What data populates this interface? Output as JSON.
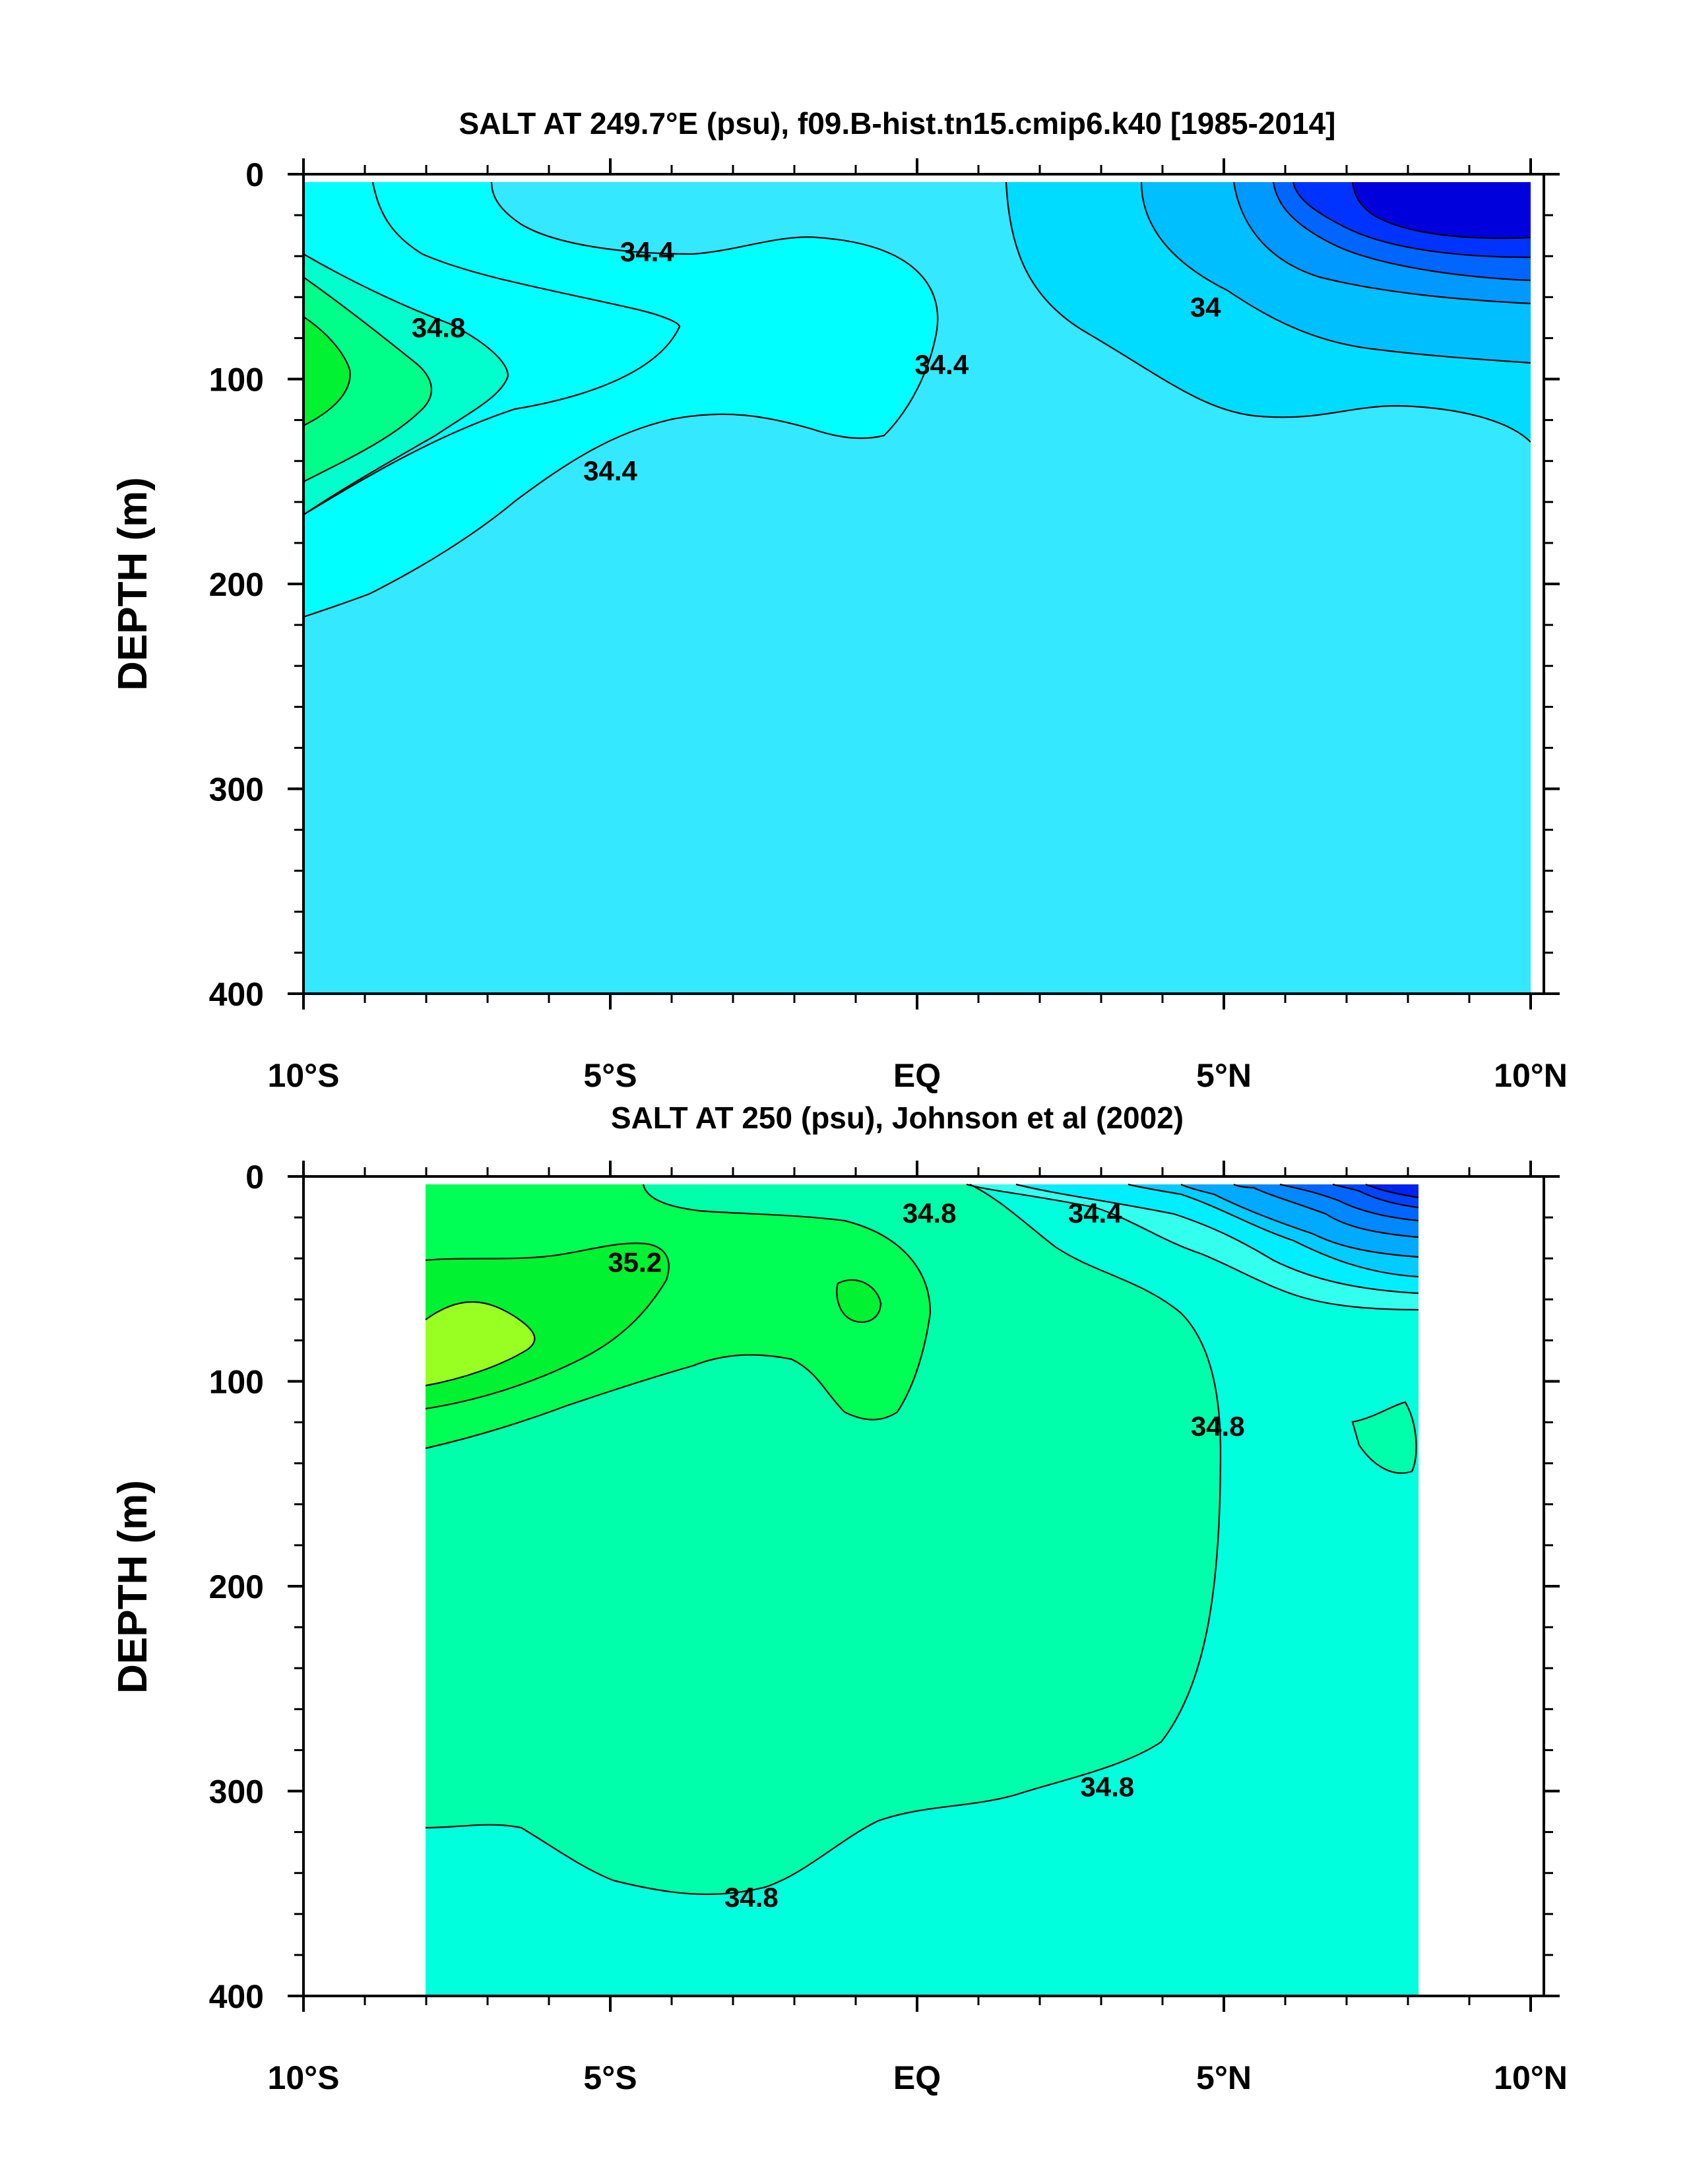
{
  "chart_data": [
    {
      "type": "contour",
      "title": "SALT AT 249.7°E (psu), f09.B-hist.tn15.cmip6.k40 [1985-2014]",
      "ylabel": "DEPTH (m)",
      "xlim": [
        -10,
        10
      ],
      "ylim": [
        400,
        0
      ],
      "x_ticks": [
        {
          "value": -10,
          "label": "10°S"
        },
        {
          "value": -5,
          "label": "5°S"
        },
        {
          "value": 0,
          "label": "EQ"
        },
        {
          "value": 5,
          "label": "5°N"
        },
        {
          "value": 10,
          "label": "10°N"
        }
      ],
      "y_ticks": [
        {
          "value": 0,
          "label": "0"
        },
        {
          "value": 100,
          "label": "100"
        },
        {
          "value": 200,
          "label": "200"
        },
        {
          "value": 300,
          "label": "300"
        },
        {
          "value": 400,
          "label": "400"
        }
      ],
      "data_extent_x": [
        -10,
        10
      ],
      "data_extent_y": [
        5,
        400
      ],
      "contour_interval": 0.2,
      "contour_labels": [
        {
          "x": -4.4,
          "y": 38,
          "text": "34.4"
        },
        {
          "x": -7.8,
          "y": 75,
          "text": "34.8"
        },
        {
          "x": 0.4,
          "y": 93,
          "text": "34.4"
        },
        {
          "x": -5.0,
          "y": 145,
          "text": "34.4"
        },
        {
          "x": 4.7,
          "y": 65,
          "text": "34"
        }
      ],
      "regions": [
        {
          "value": 34.5,
          "color": "#33e8ff",
          "desc": "background"
        },
        {
          "value": 34.3,
          "color": "#00ffff"
        },
        {
          "value": 34.7,
          "color": "#00ffcc"
        },
        {
          "value": 34.9,
          "color": "#00ff88"
        },
        {
          "value": 35.1,
          "color": "#00f233"
        },
        {
          "value": 34.1,
          "color": "#00dcff"
        },
        {
          "value": 33.9,
          "color": "#00bfff"
        },
        {
          "value": 33.7,
          "color": "#0099ff"
        },
        {
          "value": 33.5,
          "color": "#0066ff"
        },
        {
          "value": 33.3,
          "color": "#0033ff"
        },
        {
          "value": 33.1,
          "color": "#0000dd"
        }
      ]
    },
    {
      "type": "contour",
      "title": "SALT AT 250 (psu), Johnson et al (2002)",
      "ylabel": "DEPTH (m)",
      "xlim": [
        -10,
        10
      ],
      "ylim": [
        400,
        0
      ],
      "x_ticks": [
        {
          "value": -10,
          "label": "10°S"
        },
        {
          "value": -5,
          "label": "5°S"
        },
        {
          "value": 0,
          "label": "EQ"
        },
        {
          "value": 5,
          "label": "5°N"
        },
        {
          "value": 10,
          "label": "10°N"
        }
      ],
      "y_ticks": [
        {
          "value": 0,
          "label": "0"
        },
        {
          "value": 100,
          "label": "100"
        },
        {
          "value": 200,
          "label": "200"
        },
        {
          "value": 300,
          "label": "300"
        },
        {
          "value": 400,
          "label": "400"
        }
      ],
      "data_extent_x": [
        -8,
        8.2
      ],
      "data_extent_y": [
        5,
        400
      ],
      "contour_interval": 0.2,
      "contour_labels": [
        {
          "x": -4.6,
          "y": 42,
          "text": "35.2"
        },
        {
          "x": 0.2,
          "y": 18,
          "text": "34.8"
        },
        {
          "x": 2.9,
          "y": 18,
          "text": "34.4"
        },
        {
          "x": 4.9,
          "y": 122,
          "text": "34.8"
        },
        {
          "x": 3.1,
          "y": 298,
          "text": "34.8"
        },
        {
          "x": -2.7,
          "y": 352,
          "text": "34.8"
        }
      ],
      "regions": [
        {
          "value": 34.7,
          "color": "#00ffdd",
          "desc": "background"
        },
        {
          "value": 34.9,
          "color": "#00ffaa"
        },
        {
          "value": 35.1,
          "color": "#00ff55"
        },
        {
          "value": 35.3,
          "color": "#00f230"
        },
        {
          "value": 35.5,
          "color": "#99ff22"
        },
        {
          "value": 35.7,
          "color": "#ffff66"
        },
        {
          "value": 34.5,
          "color": "#33ffee"
        },
        {
          "value": 34.3,
          "color": "#00eeff"
        },
        {
          "value": 34.1,
          "color": "#00ccff"
        },
        {
          "value": 33.9,
          "color": "#00aaff"
        },
        {
          "value": 33.7,
          "color": "#0088ff"
        },
        {
          "value": 33.5,
          "color": "#0066ff"
        },
        {
          "value": 33.3,
          "color": "#0044ff"
        },
        {
          "value": 33.1,
          "color": "#0022ee"
        }
      ]
    }
  ]
}
